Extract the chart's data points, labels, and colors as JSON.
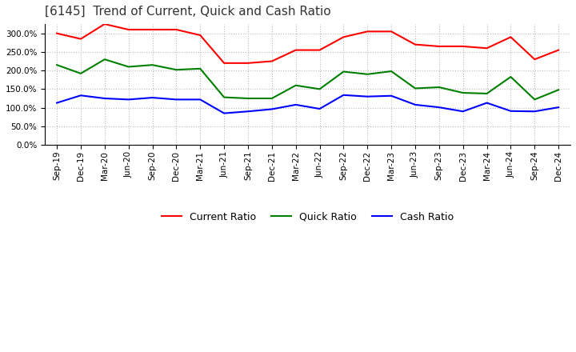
{
  "title": "[6145]  Trend of Current, Quick and Cash Ratio",
  "labels": [
    "Sep-19",
    "Dec-19",
    "Mar-20",
    "Jun-20",
    "Sep-20",
    "Dec-20",
    "Mar-21",
    "Jun-21",
    "Sep-21",
    "Dec-21",
    "Mar-22",
    "Jun-22",
    "Sep-22",
    "Dec-22",
    "Mar-23",
    "Jun-23",
    "Sep-23",
    "Dec-23",
    "Mar-24",
    "Jun-24",
    "Sep-24",
    "Dec-24"
  ],
  "current_ratio": [
    300,
    285,
    325,
    310,
    310,
    310,
    295,
    220,
    220,
    225,
    255,
    255,
    290,
    305,
    305,
    270,
    265,
    265,
    260,
    290,
    230,
    255
  ],
  "quick_ratio": [
    215,
    192,
    230,
    210,
    215,
    202,
    205,
    128,
    125,
    125,
    160,
    150,
    197,
    190,
    198,
    152,
    155,
    140,
    138,
    183,
    122,
    148
  ],
  "cash_ratio": [
    113,
    133,
    125,
    122,
    127,
    122,
    122,
    85,
    90,
    96,
    108,
    97,
    134,
    130,
    132,
    108,
    101,
    90,
    113,
    91,
    90,
    101
  ],
  "current_color": "#FF0000",
  "quick_color": "#008000",
  "cash_color": "#0000FF",
  "ylim": [
    0,
    325
  ],
  "yticks": [
    0,
    50,
    100,
    150,
    200,
    250,
    300
  ],
  "background_color": "#FFFFFF",
  "grid_color": "#BBBBBB",
  "title_fontsize": 11,
  "tick_fontsize": 7.5,
  "legend_fontsize": 9
}
